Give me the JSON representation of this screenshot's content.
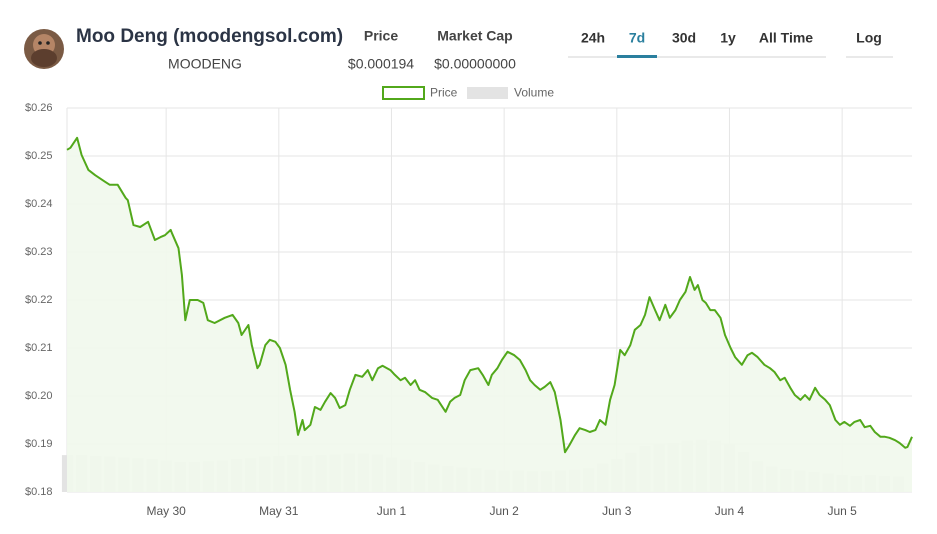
{
  "header": {
    "title": "Moo Deng (moodengsol.com)",
    "symbol": "MOODENG",
    "price_label": "Price",
    "price_value": "$0.000194",
    "mcap_label": "Market Cap",
    "mcap_value": "$0.00000000",
    "ranges": [
      "24h",
      "7d",
      "30d",
      "1y",
      "All Time"
    ],
    "active_range": 1,
    "scale_button": "Log"
  },
  "chart_data": {
    "type": "line",
    "xlim": [
      -0.88,
      6.62
    ],
    "xticks": [
      {
        "value": 0,
        "label": "May 30"
      },
      {
        "value": 1,
        "label": "May 31"
      },
      {
        "value": 2,
        "label": "Jun 1"
      },
      {
        "value": 3,
        "label": "Jun 2"
      },
      {
        "value": 4,
        "label": "Jun 3"
      },
      {
        "value": 5,
        "label": "Jun 4"
      },
      {
        "value": 6,
        "label": "Jun 5"
      }
    ],
    "ylim": [
      0.18,
      0.26
    ],
    "yticks": [
      {
        "value": 0.18,
        "label": "$0.18"
      },
      {
        "value": 0.19,
        "label": "$0.19"
      },
      {
        "value": 0.2,
        "label": "$0.20"
      },
      {
        "value": 0.21,
        "label": "$0.21"
      },
      {
        "value": 0.22,
        "label": "$0.22"
      },
      {
        "value": 0.23,
        "label": "$0.23"
      },
      {
        "value": 0.24,
        "label": "$0.24"
      },
      {
        "value": 0.25,
        "label": "$0.25"
      },
      {
        "value": 0.26,
        "label": "$0.26"
      }
    ],
    "y2lim": [
      0,
      100
    ],
    "grid": true,
    "series": [
      {
        "name": "Price",
        "color": "#52a81b",
        "fill": "#f1f8ec",
        "x": [
          -0.88,
          -0.85,
          -0.79,
          -0.75,
          -0.69,
          -0.63,
          -0.54,
          -0.5,
          -0.43,
          -0.36,
          -0.34,
          -0.29,
          -0.23,
          -0.16,
          -0.1,
          -0.05,
          -0.01,
          0.04,
          0.05,
          0.11,
          0.14,
          0.17,
          0.21,
          0.28,
          0.33,
          0.37,
          0.43,
          0.52,
          0.59,
          0.64,
          0.67,
          0.73,
          0.76,
          0.81,
          0.83,
          0.88,
          0.92,
          0.97,
          1.01,
          1.06,
          1.1,
          1.14,
          1.17,
          1.21,
          1.23,
          1.28,
          1.32,
          1.37,
          1.41,
          1.46,
          1.5,
          1.54,
          1.59,
          1.63,
          1.68,
          1.74,
          1.79,
          1.83,
          1.88,
          1.92,
          1.99,
          2.03,
          2.08,
          2.12,
          2.17,
          2.21,
          2.25,
          2.3,
          2.36,
          2.41,
          2.48,
          2.52,
          2.56,
          2.61,
          2.65,
          2.7,
          2.77,
          2.81,
          2.86,
          2.89,
          2.94,
          2.98,
          3.03,
          3.09,
          3.14,
          3.19,
          3.23,
          3.27,
          3.32,
          3.36,
          3.41,
          3.45,
          3.5,
          3.54,
          3.58,
          3.63,
          3.67,
          3.72,
          3.76,
          3.81,
          3.85,
          3.9,
          3.94,
          3.98,
          4.03,
          4.07,
          4.12,
          4.16,
          4.21,
          4.25,
          4.29,
          4.34,
          4.38,
          4.43,
          4.47,
          4.52,
          4.56,
          4.61,
          4.65,
          4.69,
          4.72,
          4.76,
          4.79,
          4.83,
          4.87,
          4.92,
          4.96,
          5.01,
          5.05,
          5.11,
          5.16,
          5.2,
          5.25,
          5.31,
          5.36,
          5.4,
          5.45,
          5.49,
          5.54,
          5.58,
          5.63,
          5.67,
          5.71,
          5.76,
          5.8,
          5.85,
          5.89,
          5.94,
          5.98,
          6.02,
          6.07,
          6.11,
          6.16,
          6.2,
          6.25,
          6.29,
          6.34,
          6.38,
          6.42,
          6.47,
          6.51,
          6.56,
          6.58,
          6.62
        ],
        "values": [
          0.2513,
          0.2517,
          0.2538,
          0.2502,
          0.2471,
          0.246,
          0.2446,
          0.244,
          0.244,
          0.2413,
          0.2408,
          0.2356,
          0.2352,
          0.2363,
          0.2325,
          0.2331,
          0.2335,
          0.2346,
          0.234,
          0.2308,
          0.2252,
          0.2158,
          0.22,
          0.22,
          0.2194,
          0.2158,
          0.2152,
          0.2163,
          0.2169,
          0.2152,
          0.2127,
          0.2148,
          0.2106,
          0.2058,
          0.2065,
          0.2106,
          0.2117,
          0.2113,
          0.21,
          0.2065,
          0.2013,
          0.1967,
          0.1919,
          0.195,
          0.1929,
          0.194,
          0.1977,
          0.1971,
          0.1988,
          0.2006,
          0.1996,
          0.1975,
          0.1981,
          0.2013,
          0.2044,
          0.204,
          0.2054,
          0.2033,
          0.2058,
          0.2063,
          0.2054,
          0.2044,
          0.2033,
          0.2038,
          0.2023,
          0.2033,
          0.2013,
          0.2008,
          0.1996,
          0.1992,
          0.1967,
          0.1988,
          0.1996,
          0.2002,
          0.2033,
          0.2054,
          0.2058,
          0.2044,
          0.2023,
          0.2044,
          0.2058,
          0.2075,
          0.2092,
          0.2085,
          0.2075,
          0.2054,
          0.2033,
          0.2023,
          0.2013,
          0.2019,
          0.2029,
          0.2008,
          0.195,
          0.1883,
          0.1898,
          0.1919,
          0.1933,
          0.1929,
          0.1925,
          0.1929,
          0.195,
          0.194,
          0.1992,
          0.2023,
          0.2096,
          0.2085,
          0.2106,
          0.2138,
          0.2148,
          0.2169,
          0.2206,
          0.2179,
          0.2158,
          0.219,
          0.2163,
          0.2179,
          0.22,
          0.2217,
          0.2248,
          0.2221,
          0.2231,
          0.22,
          0.2194,
          0.2179,
          0.2179,
          0.2163,
          0.2127,
          0.21,
          0.2081,
          0.2065,
          0.2085,
          0.209,
          0.2081,
          0.2065,
          0.2058,
          0.205,
          0.2033,
          0.2038,
          0.2017,
          0.2002,
          0.1992,
          0.2002,
          0.1992,
          0.2017,
          0.2002,
          0.1992,
          0.1981,
          0.195,
          0.194,
          0.1946,
          0.1938,
          0.1946,
          0.195,
          0.1935,
          0.1938,
          0.1925,
          0.1915,
          0.1915,
          0.1913,
          0.1908,
          0.1902,
          0.1892,
          0.1894,
          0.1915
        ]
      },
      {
        "name": "Volume",
        "color": "#e3e3e3",
        "axis": "y2",
        "x": [
          -0.875,
          -0.75,
          -0.625,
          -0.5,
          -0.375,
          -0.25,
          -0.125,
          0,
          0.125,
          0.25,
          0.375,
          0.5,
          0.625,
          0.75,
          0.875,
          1,
          1.125,
          1.25,
          1.375,
          1.5,
          1.625,
          1.75,
          1.875,
          2,
          2.125,
          2.25,
          2.375,
          2.5,
          2.625,
          2.75,
          2.875,
          3,
          3.125,
          3.25,
          3.375,
          3.5,
          3.625,
          3.75,
          3.875,
          4,
          4.125,
          4.25,
          4.375,
          4.5,
          4.625,
          4.75,
          4.875,
          5,
          5.125,
          5.25,
          5.375,
          5.5,
          5.625,
          5.75,
          5.875,
          6,
          6.125,
          6.25,
          6.375,
          6.5
        ],
        "values": [
          9.6,
          9.6,
          9.4,
          9.2,
          9.0,
          8.8,
          8.6,
          8.2,
          7.8,
          7.8,
          8.0,
          8.2,
          8.6,
          8.8,
          9.2,
          9.4,
          9.6,
          9.4,
          9.6,
          9.8,
          10.0,
          10.0,
          9.8,
          9.0,
          8.4,
          7.8,
          7.2,
          6.8,
          6.4,
          6.2,
          5.8,
          5.6,
          5.6,
          5.4,
          5.4,
          5.6,
          5.8,
          6.2,
          7.4,
          8.6,
          10.2,
          12.0,
          12.4,
          12.8,
          13.4,
          13.6,
          13.4,
          12.4,
          10.4,
          8.0,
          6.6,
          6.0,
          5.6,
          5.2,
          4.8,
          4.4,
          4.2,
          4.4,
          4.2,
          4.0
        ]
      }
    ]
  }
}
